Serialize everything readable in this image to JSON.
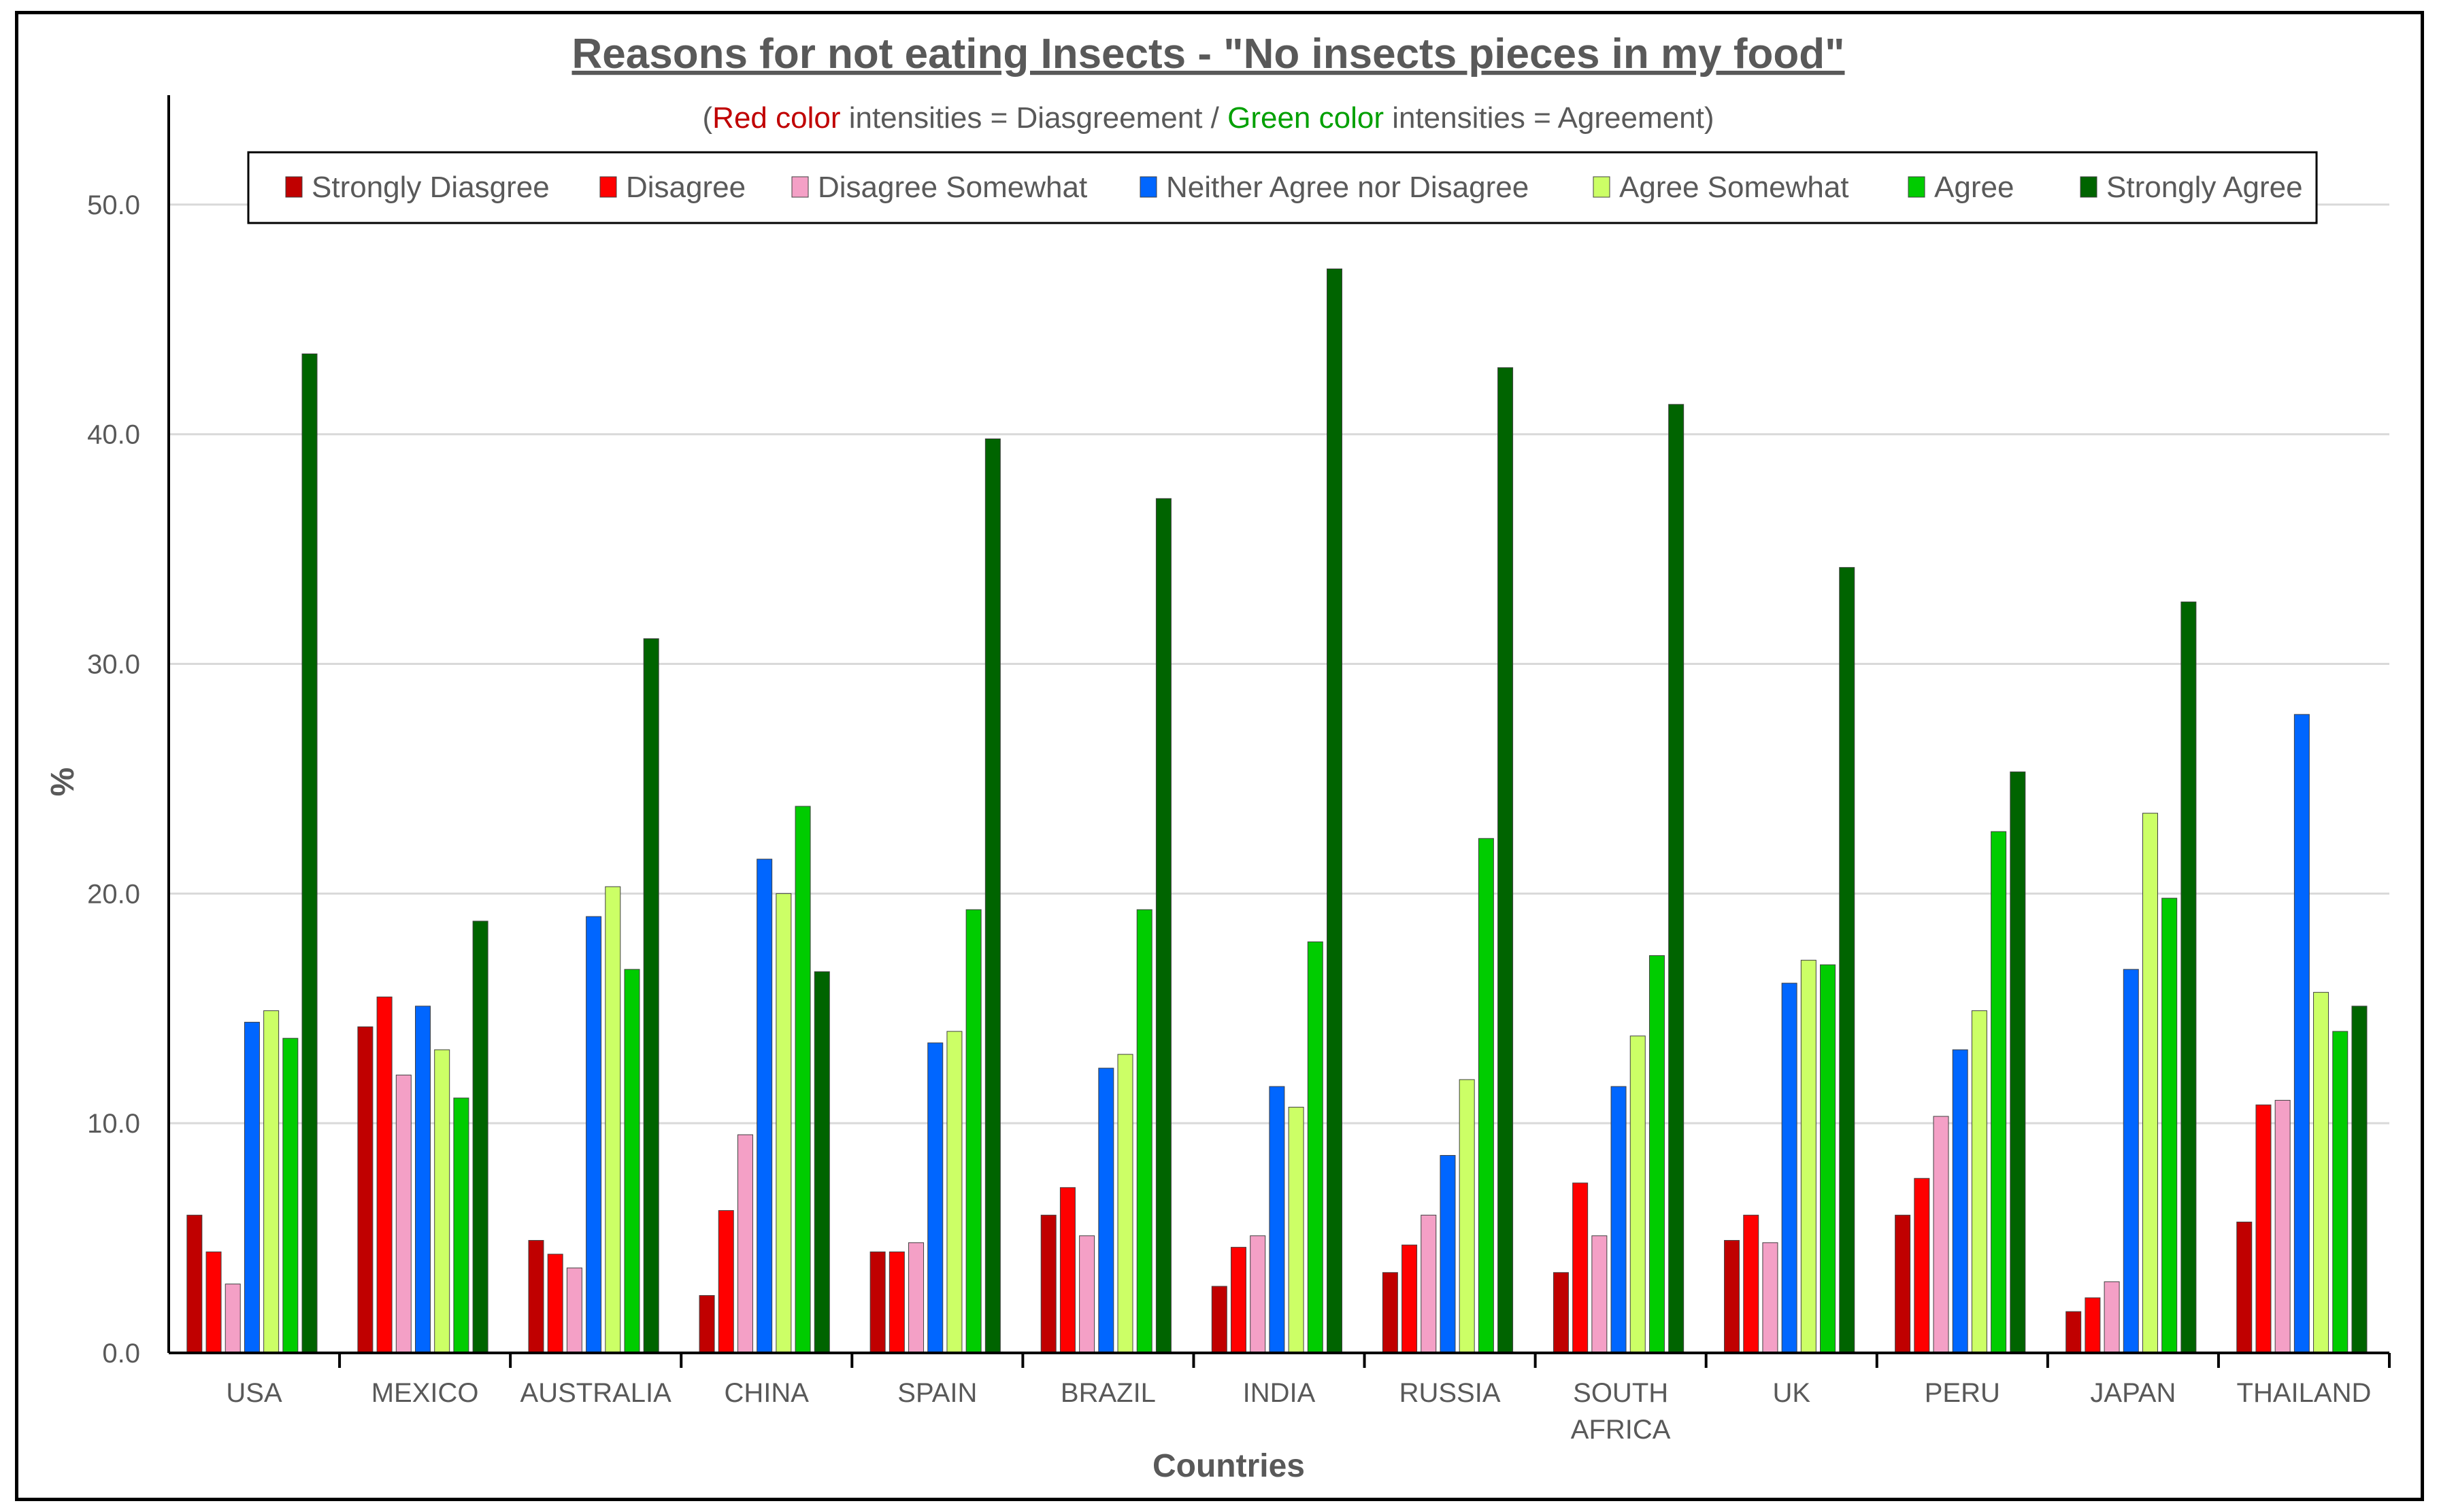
{
  "chart_data": {
    "type": "bar",
    "title": "Reasons for not eating Insects - \"No insects pieces in my food\"",
    "subtitle": {
      "parts": [
        {
          "text": "(",
          "color": "#595959"
        },
        {
          "text": "Red color",
          "color": "#C00000"
        },
        {
          "text": " intensities = Diasgreement / ",
          "color": "#595959"
        },
        {
          "text": "Green color",
          "color": "#00A000"
        },
        {
          "text": " intensities = Agreement)",
          "color": "#595959"
        }
      ]
    },
    "xlabel": "Countries",
    "ylabel": "%",
    "ylim": [
      0,
      55
    ],
    "yticks": [
      "0.0",
      "10.0",
      "20.0",
      "30.0",
      "40.0",
      "50.0"
    ],
    "grid": true,
    "legend_position": "top",
    "categories": [
      "USA",
      "MEXICO",
      "AUSTRALIA",
      "CHINA",
      "SPAIN",
      "BRAZIL",
      "INDIA",
      "RUSSIA",
      "SOUTH AFRICA",
      "UK",
      "PERU",
      "JAPAN",
      "THAILAND"
    ],
    "series": [
      {
        "name": "Strongly Diasgree",
        "color": "#C00000",
        "values": [
          6.0,
          14.2,
          4.9,
          2.5,
          4.4,
          6.0,
          2.9,
          3.5,
          3.5,
          4.9,
          6.0,
          1.8,
          5.7
        ]
      },
      {
        "name": "Disagree",
        "color": "#FF0000",
        "values": [
          4.4,
          15.5,
          4.3,
          6.2,
          4.4,
          7.2,
          4.6,
          4.7,
          7.4,
          6.0,
          7.6,
          2.4,
          10.8
        ]
      },
      {
        "name": "Disagree Somewhat",
        "color": "#F4A0C6",
        "values": [
          3.0,
          12.1,
          3.7,
          9.5,
          4.8,
          5.1,
          5.1,
          6.0,
          5.1,
          4.8,
          10.3,
          3.1,
          11.0
        ]
      },
      {
        "name": "Neither Agree nor Disagree",
        "color": "#0066FF",
        "values": [
          14.4,
          15.1,
          19.0,
          21.5,
          13.5,
          12.4,
          11.6,
          8.6,
          11.6,
          16.1,
          13.2,
          16.7,
          27.8
        ]
      },
      {
        "name": "Agree Somewhat",
        "color": "#CCFF66",
        "values": [
          14.9,
          13.2,
          20.3,
          20.0,
          14.0,
          13.0,
          10.7,
          11.9,
          13.8,
          17.1,
          14.9,
          23.5,
          15.7
        ]
      },
      {
        "name": "Agree",
        "color": "#00CC00",
        "values": [
          13.7,
          11.1,
          16.7,
          23.8,
          19.3,
          19.3,
          17.9,
          22.4,
          17.3,
          16.9,
          22.7,
          19.8,
          14.0
        ]
      },
      {
        "name": "Strongly Agree",
        "color": "#006400",
        "values": [
          43.5,
          18.8,
          31.1,
          16.6,
          39.8,
          37.2,
          47.2,
          42.9,
          41.3,
          34.2,
          25.3,
          32.7,
          15.1
        ]
      }
    ]
  }
}
